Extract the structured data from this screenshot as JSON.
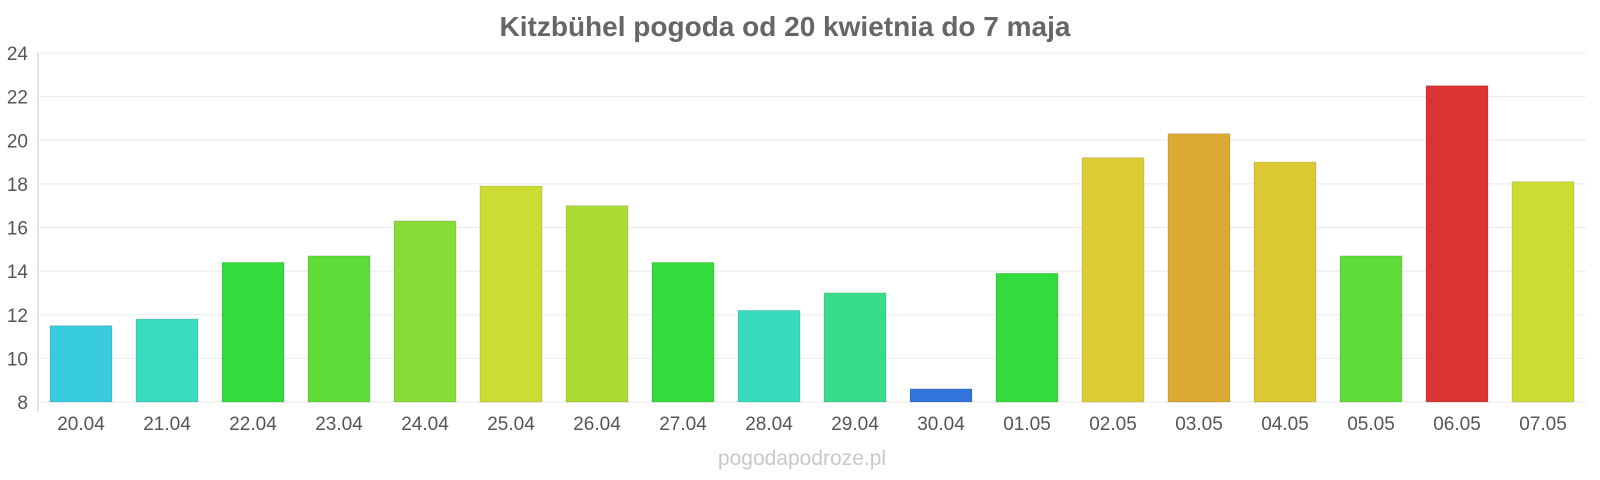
{
  "chart_data": {
    "type": "bar",
    "title": "Kitzbühel pogoda od 20 kwietnia do 7 maja",
    "xlabel": "",
    "ylabel": "",
    "ylim": [
      8,
      24
    ],
    "yticks": [
      8,
      10,
      12,
      14,
      16,
      18,
      20,
      22,
      24
    ],
    "grid": true,
    "legend": "none",
    "categories": [
      "20.04",
      "21.04",
      "22.04",
      "23.04",
      "24.04",
      "25.04",
      "26.04",
      "27.04",
      "28.04",
      "29.04",
      "30.04",
      "01.05",
      "02.05",
      "03.05",
      "04.05",
      "05.05",
      "06.05",
      "07.05"
    ],
    "values": [
      11.5,
      11.8,
      14.4,
      14.7,
      16.3,
      17.9,
      17.0,
      14.4,
      12.2,
      13.0,
      8.6,
      13.9,
      19.2,
      20.3,
      19.0,
      14.7,
      22.5,
      18.1
    ],
    "colors": [
      "#38ccdc",
      "#38dcc0",
      "#33dc3d",
      "#60dc38",
      "#88dc38",
      "#ccdc33",
      "#aadc33",
      "#33dc3d",
      "#38dcbc",
      "#38dc8c",
      "#3374dc",
      "#33dc3d",
      "#dccc33",
      "#dcaa33",
      "#dcc833",
      "#60dc38",
      "#dc3333",
      "#ccdc33"
    ]
  },
  "watermark": "pogodapodroze.pl"
}
